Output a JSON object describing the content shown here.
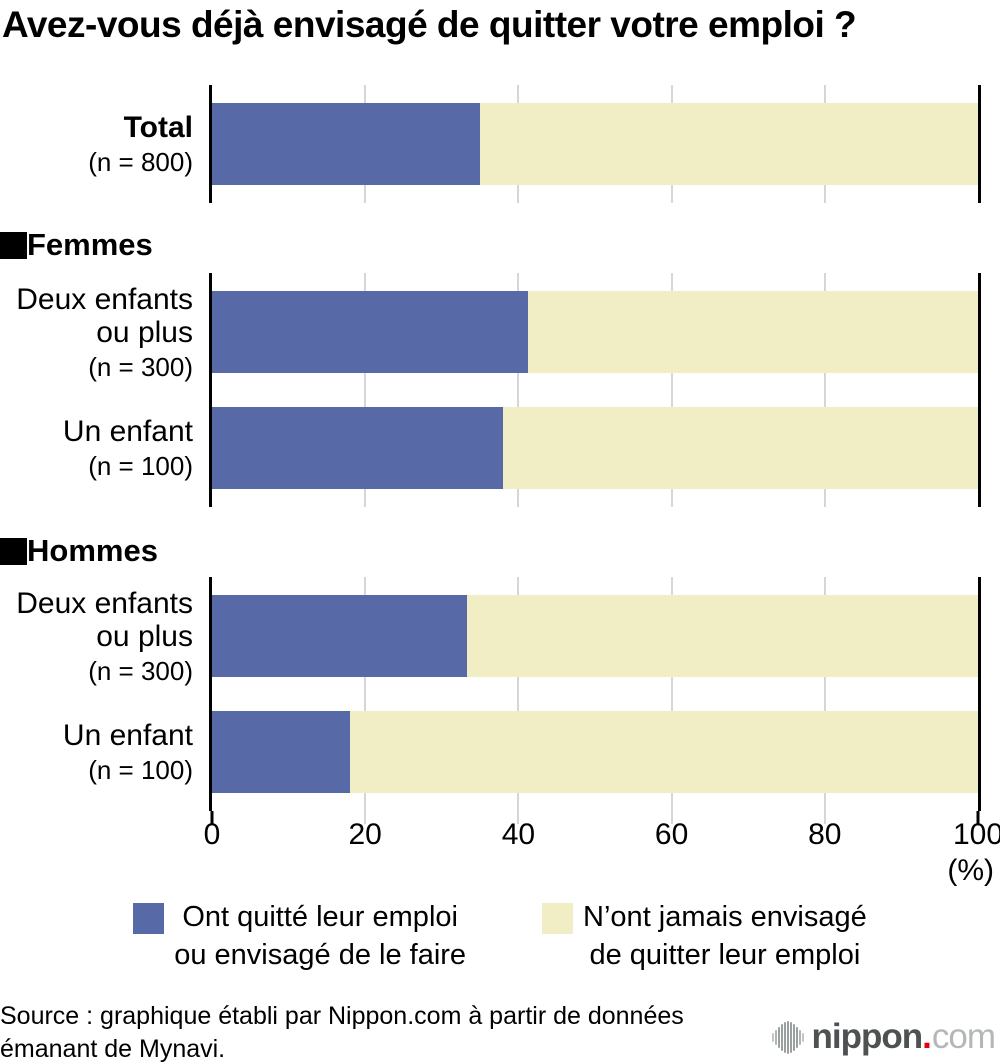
{
  "title": "Avez-vous déjà envisagé de quitter votre emploi ?",
  "colors": {
    "quit_or_considered": "#5769a7",
    "never_considered": "#f1eec6",
    "gridline": "#d6d6d6",
    "axis": "#000000",
    "logo_dot_red": "#e60012"
  },
  "chart_data": {
    "type": "bar",
    "orientation": "horizontal",
    "stacked": true,
    "title": "Avez-vous déjà envisagé de quitter votre emploi ?",
    "xlabel": "(%)",
    "xlim": [
      0,
      100
    ],
    "x_ticks": [
      "0",
      "20",
      "40",
      "60",
      "80",
      "100"
    ],
    "x_unit": "(%)",
    "grid": "vertical at 20/40/60/80, light gray",
    "legend_position": "bottom-center",
    "series_names": [
      "Ont quitté leur emploi ou envisagé de le faire",
      "N’ont jamais envisagé de quitter leur emploi"
    ],
    "groups": [
      {
        "header": "",
        "rows": [
          {
            "label_line1": "Total",
            "label_line2": "",
            "n_label": "(n = 800)",
            "quit_pct": 35,
            "never_pct": 65
          }
        ]
      },
      {
        "header": "Femmes",
        "rows": [
          {
            "label_line1": "Deux enfants",
            "label_line2": "ou plus",
            "n_label": "(n = 300)",
            "quit_pct": 41.3,
            "never_pct": 58.7
          },
          {
            "label_line1": "Un enfant",
            "label_line2": "",
            "n_label": "(n = 100)",
            "quit_pct": 38,
            "never_pct": 62
          }
        ]
      },
      {
        "header": "Hommes",
        "rows": [
          {
            "label_line1": "Deux enfants",
            "label_line2": "ou plus",
            "n_label": "(n = 300)",
            "quit_pct": 33.3,
            "never_pct": 66.7
          },
          {
            "label_line1": "Un enfant",
            "label_line2": "",
            "n_label": "(n = 100)",
            "quit_pct": 18,
            "never_pct": 82
          }
        ]
      }
    ]
  },
  "legend": {
    "item1_line1": "Ont quitté leur emploi",
    "item1_line2": "ou envisagé de le faire",
    "item2_line1": "N’ont jamais envisagé",
    "item2_line2": "de quitter leur emploi"
  },
  "source": {
    "line1": "Source : graphique établi par Nippon.com à partir de données",
    "line2": "émanant de Mynavi."
  },
  "logo": {
    "main": "nippon",
    "dot": ".",
    "tld": "com"
  }
}
